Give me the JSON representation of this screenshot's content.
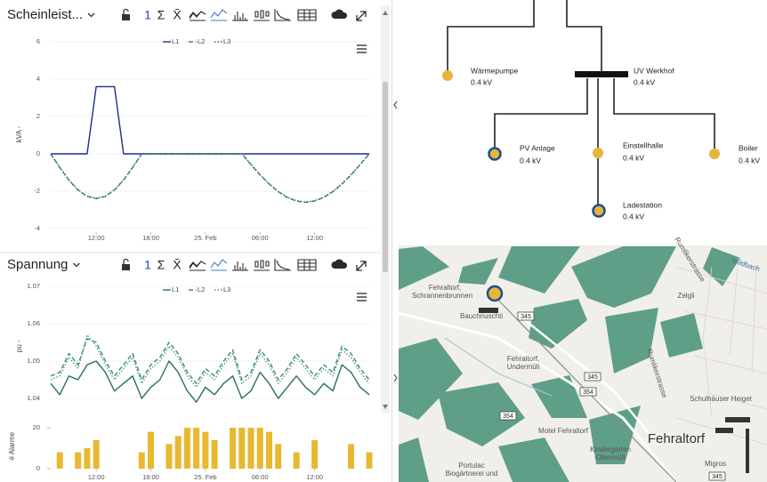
{
  "chart_data": [
    {
      "type": "line",
      "title": "Scheinleist...",
      "toolbar": [
        "1",
        "Σ",
        "X̄"
      ],
      "ylabel": "kVA -",
      "x": [
        0,
        1,
        2,
        3,
        4,
        5,
        6,
        7,
        8,
        9,
        10,
        11,
        12,
        13,
        14,
        15,
        16,
        17,
        18,
        19,
        20,
        21,
        22,
        23,
        24,
        25,
        26,
        27,
        28,
        29,
        30,
        31,
        32,
        33,
        34,
        35
      ],
      "xlim": [
        0,
        35
      ],
      "xticks": [
        {
          "value": 5,
          "label": "12:00"
        },
        {
          "value": 11,
          "label": "18:00"
        },
        {
          "value": 17,
          "label": "25. Feb"
        },
        {
          "value": 23,
          "label": "06:00"
        },
        {
          "value": 29,
          "label": "12:00"
        }
      ],
      "ylim": [
        -4.2,
        6.3
      ],
      "yticks": [
        -4,
        -2,
        0,
        2,
        4,
        6
      ],
      "grid": true,
      "legend": true,
      "series": [
        {
          "name": "L1",
          "color": "#1e2d8f",
          "dash": "solid",
          "values": [
            0,
            0,
            0,
            0,
            0,
            3.6,
            3.6,
            3.6,
            0,
            0,
            0,
            0,
            0,
            0,
            0,
            0,
            0,
            0,
            0,
            0,
            0,
            0,
            0,
            0,
            0,
            0,
            0,
            0,
            0,
            0,
            0,
            0,
            0,
            0,
            0,
            0
          ]
        },
        {
          "name": "L2",
          "color": "#3a8a6e",
          "dash": "dashed",
          "values": [
            0,
            -0.74,
            -1.41,
            -1.94,
            -2.28,
            -2.4,
            -2.28,
            -1.94,
            -1.41,
            -0.74,
            0,
            0,
            0,
            0,
            0,
            0,
            0,
            0,
            0,
            0,
            0,
            0,
            -0.58,
            -1.13,
            -1.62,
            -2.03,
            -2.34,
            -2.53,
            -2.6,
            -2.53,
            -2.34,
            -2.03,
            -1.62,
            -1.13,
            -0.58,
            0
          ]
        },
        {
          "name": "L3",
          "color": "#2f6f5a",
          "dash": "dotted",
          "values": [
            0,
            -0.72,
            -1.39,
            -1.92,
            -2.26,
            -2.38,
            -2.26,
            -1.92,
            -1.39,
            -0.72,
            0,
            0,
            0,
            0,
            0,
            0,
            0,
            0,
            0,
            0,
            0,
            0,
            -0.56,
            -1.11,
            -1.6,
            -2.01,
            -2.32,
            -2.51,
            -2.58,
            -2.51,
            -2.32,
            -2.01,
            -1.6,
            -1.11,
            -0.56,
            0
          ]
        }
      ]
    },
    {
      "type": "line",
      "title": "Spannung",
      "toolbar": [
        "1",
        "Σ",
        "X̄"
      ],
      "ylabel": "pu -",
      "x": [
        0,
        1,
        2,
        3,
        4,
        5,
        6,
        7,
        8,
        9,
        10,
        11,
        12,
        13,
        14,
        15,
        16,
        17,
        18,
        19,
        20,
        21,
        22,
        23,
        24,
        25,
        26,
        27,
        28,
        29,
        30,
        31,
        32,
        33,
        34,
        35
      ],
      "xlim": [
        0,
        35
      ],
      "ylim": [
        1.037,
        1.071
      ],
      "yticks": [
        1.04,
        1.05,
        1.06,
        1.07
      ],
      "grid": true,
      "legend": true,
      "series": [
        {
          "name": "L1",
          "color": "#2d6e5e",
          "dash": "solid",
          "values": [
            1.044,
            1.041,
            1.046,
            1.045,
            1.049,
            1.05,
            1.047,
            1.042,
            1.044,
            1.046,
            1.04,
            1.043,
            1.045,
            1.05,
            1.047,
            1.042,
            1.039,
            1.043,
            1.041,
            1.044,
            1.046,
            1.04,
            1.042,
            1.047,
            1.044,
            1.04,
            1.043,
            1.046,
            1.043,
            1.041,
            1.044,
            1.042,
            1.049,
            1.047,
            1.043,
            1.041
          ]
        },
        {
          "name": "L2",
          "color": "#3a8a6e",
          "dash": "dashed",
          "values": [
            1.046,
            1.047,
            1.052,
            1.049,
            1.056,
            1.055,
            1.05,
            1.046,
            1.049,
            1.052,
            1.045,
            1.049,
            1.051,
            1.055,
            1.052,
            1.047,
            1.044,
            1.048,
            1.046,
            1.05,
            1.053,
            1.045,
            1.047,
            1.053,
            1.05,
            1.045,
            1.048,
            1.052,
            1.049,
            1.046,
            1.049,
            1.047,
            1.054,
            1.052,
            1.048,
            1.045
          ]
        },
        {
          "name": "L3",
          "color": "#4a9a80",
          "dash": "dotted",
          "values": [
            1.045,
            1.046,
            1.051,
            1.048,
            1.057,
            1.054,
            1.049,
            1.045,
            1.048,
            1.051,
            1.044,
            1.048,
            1.05,
            1.054,
            1.051,
            1.046,
            1.043,
            1.047,
            1.045,
            1.049,
            1.052,
            1.044,
            1.046,
            1.052,
            1.049,
            1.044,
            1.047,
            1.051,
            1.048,
            1.045,
            1.048,
            1.046,
            1.053,
            1.051,
            1.047,
            1.044
          ]
        }
      ]
    },
    {
      "type": "bar",
      "ylabel": "# Alarme",
      "x": [
        0,
        1,
        2,
        3,
        4,
        5,
        6,
        7,
        8,
        9,
        10,
        11,
        12,
        13,
        14,
        15,
        16,
        17,
        18,
        19,
        20,
        21,
        22,
        23,
        24,
        25,
        26,
        27,
        28,
        29,
        30,
        31,
        32,
        33,
        34,
        35
      ],
      "xlim": [
        0,
        35
      ],
      "xticks": [
        {
          "value": 5,
          "label": "12:00"
        },
        {
          "value": 11,
          "label": "18:00"
        },
        {
          "value": 17,
          "label": "25. Feb"
        },
        {
          "value": 23,
          "label": "06:00"
        },
        {
          "value": 29,
          "label": "12:00"
        }
      ],
      "ylim": [
        0,
        22
      ],
      "yticks": [
        0,
        20
      ],
      "color": "#e8b830",
      "values": [
        0,
        8,
        0,
        8,
        10,
        14,
        0,
        0,
        0,
        0,
        8,
        18,
        0,
        12,
        16,
        20,
        20,
        18,
        14,
        0,
        20,
        20,
        20,
        20,
        18,
        12,
        0,
        8,
        0,
        14,
        0,
        0,
        0,
        12,
        0,
        8
      ]
    }
  ],
  "diagram": {
    "nodes": [
      {
        "label": "Wärmepumpe",
        "voltage": "0.4 kV"
      },
      {
        "label": "UV Werkhof",
        "voltage": "0.4 kV"
      },
      {
        "label": "PV Anlage",
        "voltage": "0.4 kV"
      },
      {
        "label": "Einstellhalle",
        "voltage": "0.4 kV"
      },
      {
        "label": "Boiler",
        "voltage": "0.4 kV"
      },
      {
        "label": "Ladestation",
        "voltage": "0.4 kV"
      }
    ]
  },
  "map": {
    "places": [
      [
        "Fehraltorf,",
        "Schrannenbrunnen"
      ],
      [
        "Bauchnuschti"
      ],
      [
        "Fehraltorf,",
        "Undermüli"
      ],
      [
        "Motel Fehraltorf"
      ],
      [
        "Kindergarten",
        "Obermüli"
      ],
      [
        "Fehraltorf"
      ],
      [
        "Schulhäuser Heiget"
      ],
      [
        "Migros"
      ],
      [
        "Portulac",
        "Biogärtnerei und"
      ],
      [
        "Zelgli"
      ]
    ],
    "streets": [
      "Rumlikerstrasse",
      "Rumlikerstrasse",
      "Wildbach"
    ],
    "roads": [
      "345",
      "345",
      "354",
      "354",
      "345"
    ]
  }
}
